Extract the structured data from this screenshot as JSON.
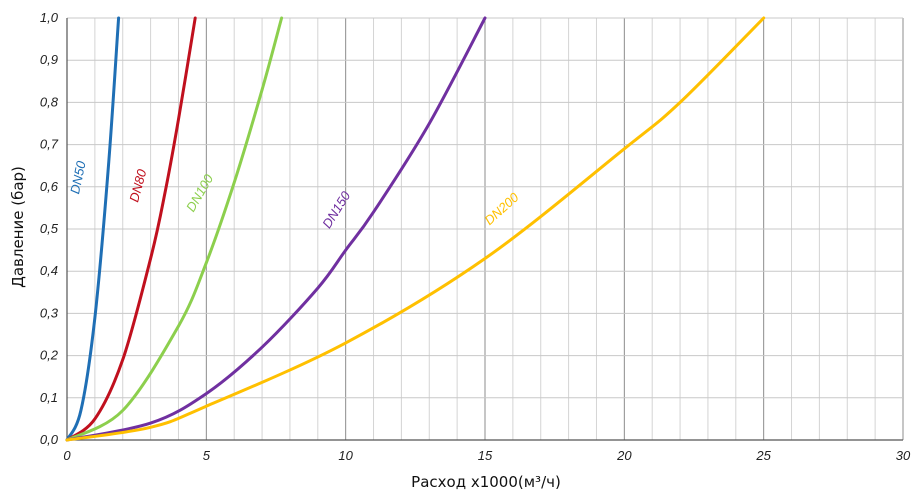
{
  "chart_data": {
    "type": "line",
    "title": "",
    "xlabel": "Расход x1000(м³/ч)",
    "ylabel": "Давление (бар)",
    "xlim": [
      0,
      30
    ],
    "ylim": [
      0,
      1.0
    ],
    "x_ticks": [
      "0",
      "5",
      "10",
      "15",
      "20",
      "25",
      "30"
    ],
    "y_ticks": [
      "0,0",
      "0,1",
      "0,2",
      "0,3",
      "0,4",
      "0,5",
      "0,6",
      "0,7",
      "0,8",
      "0,9",
      "1,0"
    ],
    "grid": true,
    "legend": "none (series labelled inline on curves)",
    "series": [
      {
        "name": "DN50",
        "color": "#1f6fb5",
        "x": [
          0,
          0.5,
          1.0,
          1.5,
          1.85
        ],
        "y": [
          0,
          0.07,
          0.29,
          0.66,
          1.0
        ]
      },
      {
        "name": "DN80",
        "color": "#c0101e",
        "x": [
          0,
          1.0,
          2.0,
          3.0,
          3.5,
          4.0,
          4.6
        ],
        "y": [
          0,
          0.05,
          0.19,
          0.43,
          0.58,
          0.76,
          1.0
        ]
      },
      {
        "name": "DN100",
        "color": "#8ccf4d",
        "x": [
          0,
          2.0,
          4.0,
          5.0,
          6.0,
          7.0,
          7.7
        ],
        "y": [
          0,
          0.07,
          0.27,
          0.42,
          0.61,
          0.83,
          1.0
        ]
      },
      {
        "name": "DN150",
        "color": "#7030a0",
        "x": [
          0,
          3.0,
          5.0,
          7.0,
          9.0,
          10.0,
          11.0,
          13.0,
          15.0
        ],
        "y": [
          0,
          0.04,
          0.11,
          0.22,
          0.36,
          0.45,
          0.54,
          0.75,
          1.0
        ]
      },
      {
        "name": "DN200",
        "color": "#ffc000",
        "x": [
          0,
          3.0,
          5.0,
          10.0,
          15.0,
          20.0,
          22.0,
          25.0
        ],
        "y": [
          0,
          0.03,
          0.08,
          0.23,
          0.43,
          0.69,
          0.8,
          1.0
        ]
      }
    ]
  }
}
